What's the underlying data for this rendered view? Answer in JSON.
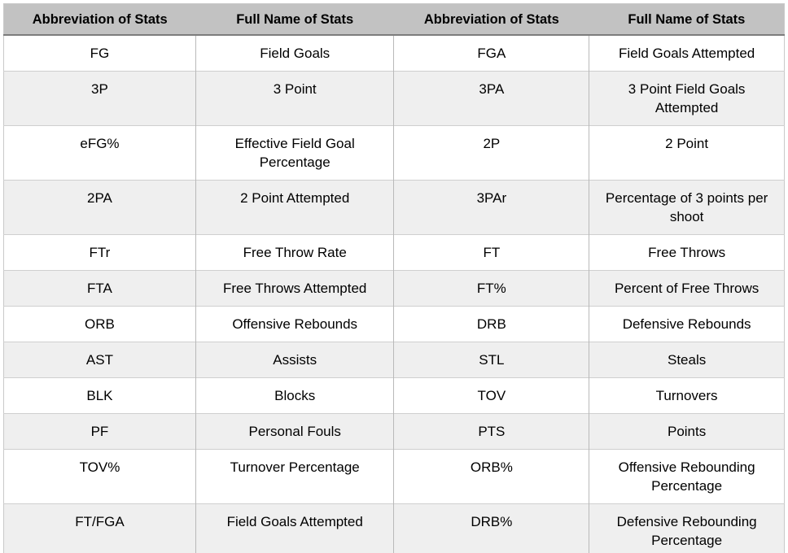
{
  "table": {
    "headers": [
      "Abbreviation of Stats",
      "Full Name of Stats",
      "Abbreviation of Stats",
      "Full Name of Stats"
    ],
    "rows": [
      [
        "FG",
        "Field Goals",
        "FGA",
        "Field Goals Attempted"
      ],
      [
        "3P",
        "3 Point",
        "3PA",
        "3 Point Field Goals Attempted"
      ],
      [
        "eFG%",
        "Effective Field Goal Percentage",
        "2P",
        "2 Point"
      ],
      [
        "2PA",
        "2 Point Attempted",
        "3PAr",
        "Percentage of 3 points per shoot"
      ],
      [
        "FTr",
        "Free Throw Rate",
        "FT",
        "Free Throws"
      ],
      [
        "FTA",
        "Free Throws Attempted",
        "FT%",
        "Percent of Free Throws"
      ],
      [
        "ORB",
        "Offensive Rebounds",
        "DRB",
        "Defensive Rebounds"
      ],
      [
        "AST",
        "Assists",
        "STL",
        "Steals"
      ],
      [
        "BLK",
        "Blocks",
        "TOV",
        "Turnovers"
      ],
      [
        "PF",
        "Personal Fouls",
        "PTS",
        "Points"
      ],
      [
        "TOV%",
        "Turnover Percentage",
        "ORB%",
        "Offensive Rebounding Percentage"
      ],
      [
        "FT/FGA",
        "Field Goals Attempted",
        "DRB%",
        "Defensive Rebounding Percentage"
      ]
    ],
    "colors": {
      "header_bg": "#c2c2c2",
      "header_rule": "#7d7d7d",
      "alt_row_bg": "#efefef",
      "row_border": "#cfcfcf",
      "column_border": "#b9b9b9",
      "text": "#000000"
    }
  }
}
